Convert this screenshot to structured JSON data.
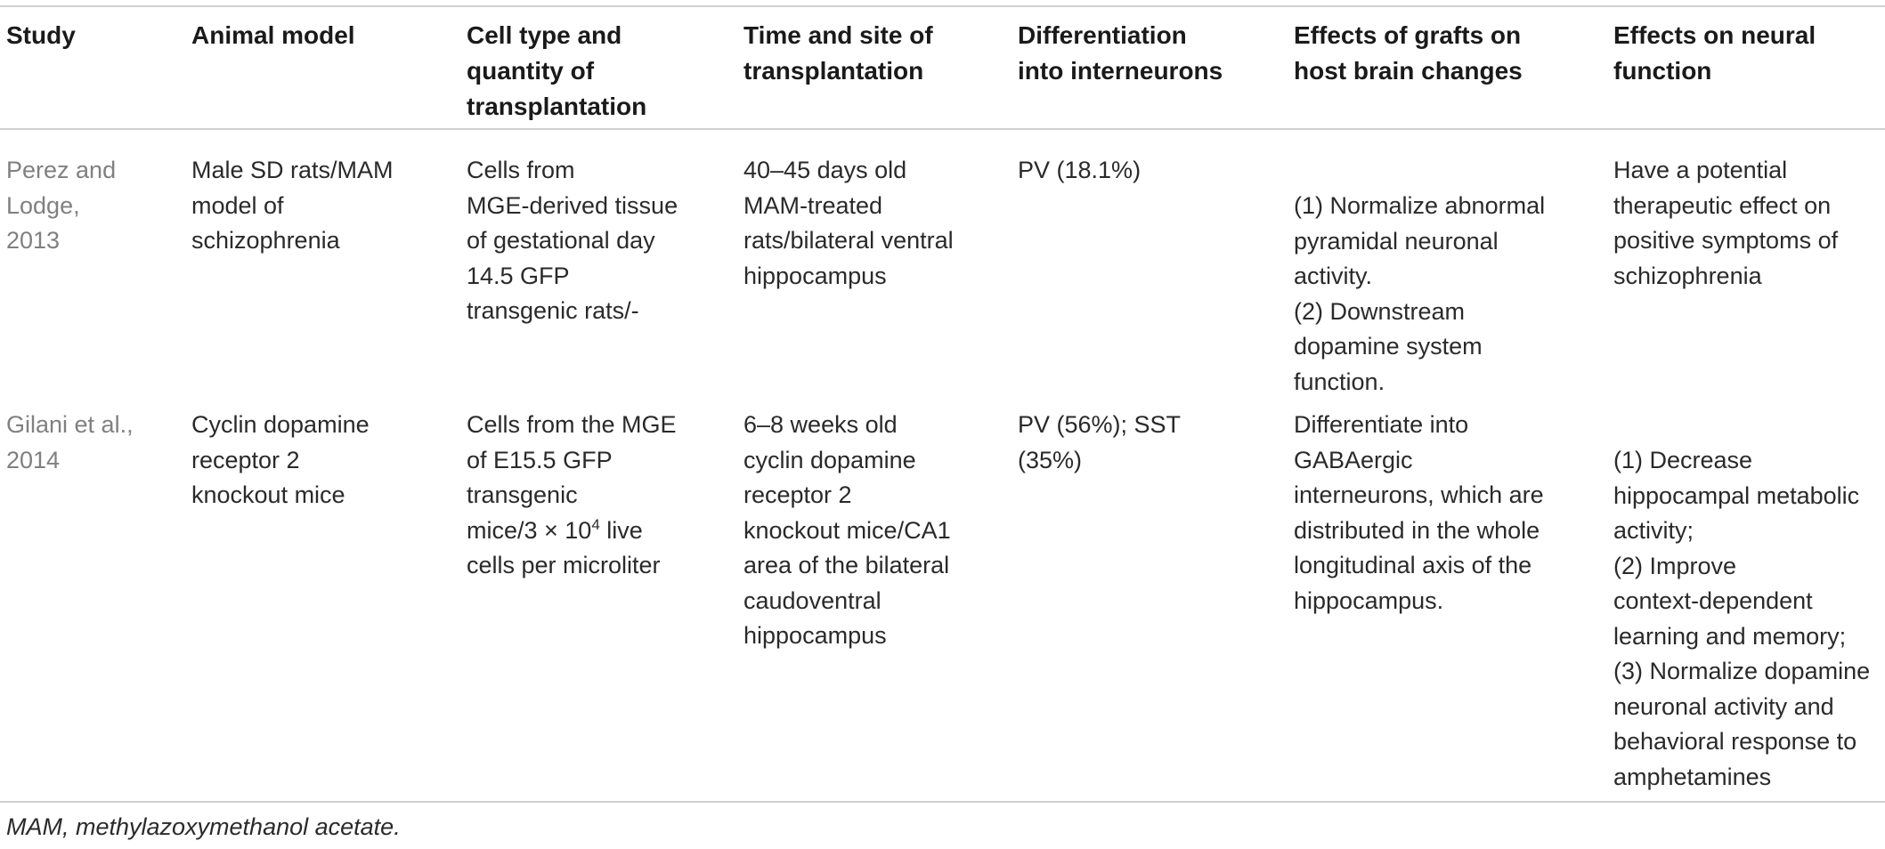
{
  "headers": [
    "Study",
    "Animal model",
    "Cell type and\nquantity of\ntransplantation",
    "Time and site of\ntransplantation",
    "Differentiation\ninto interneurons",
    "Effects of grafts on\nhost brain changes",
    "Effects on neural\nfunction"
  ],
  "rows": [
    {
      "study": "Perez and\nLodge,\n2013",
      "animal_model": "Male SD rats/MAM\nmodel of\nschizophrenia",
      "cell_type": "Cells from\nMGE-derived tissue\nof gestational day\n14.5 GFP\ntransgenic rats/-",
      "time_site": "40–45 days old\nMAM-treated\nrats/bilateral ventral\nhippocampus",
      "differentiation": "PV (18.1%)",
      "host_effects": "(1) Normalize abnormal\npyramidal neuronal\nactivity.\n(2) Downstream\ndopamine system\nfunction.",
      "neural_effects": "Have a potential\ntherapeutic effect on\npositive symptoms of\nschizophrenia"
    },
    {
      "study": "Gilani et al.,\n2014",
      "animal_model": "Cyclin dopamine\nreceptor 2\nknockout mice",
      "cell_type_before_sup": "Cells from the MGE\nof E15.5 GFP\ntransgenic\nmice/3 × 10",
      "cell_type_sup": "4",
      "cell_type_after_sup": " live\ncells per microliter",
      "time_site": "6–8 weeks old\ncyclin dopamine\nreceptor 2\nknockout mice/CA1\narea of the bilateral\ncaudoventral\nhippocampus",
      "differentiation": "PV (56%); SST\n(35%)",
      "host_effects": "Differentiate into\nGABAergic\ninterneurons, which are\ndistributed in the whole\nlongitudinal axis of the\nhippocampus.",
      "neural_effects": "(1) Decrease\nhippocampal metabolic\nactivity;\n(2) Improve\ncontext-dependent\nlearning and memory;\n(3) Normalize dopamine\nneuronal activity and\nbehavioral response to\namphetamines"
    }
  ],
  "footnote": "MAM, methylazoxymethanol acetate."
}
